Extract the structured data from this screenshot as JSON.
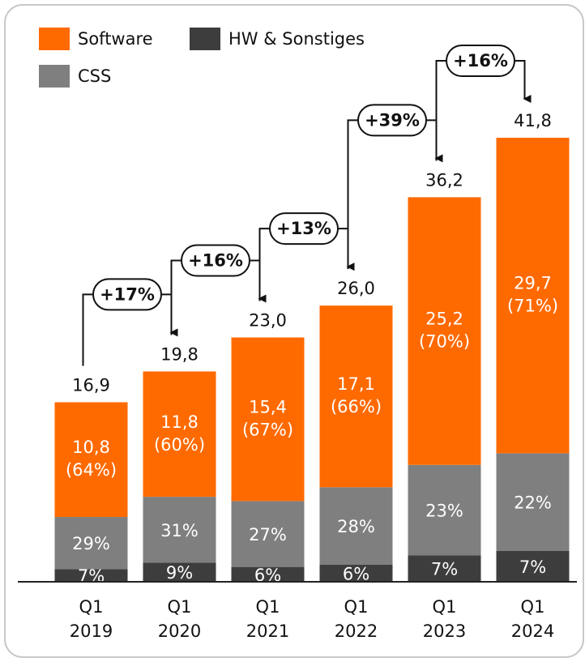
{
  "chart_data": {
    "type": "stacked_bar",
    "categories": [
      [
        "Q1",
        "2019"
      ],
      [
        "Q1",
        "2020"
      ],
      [
        "Q1",
        "2021"
      ],
      [
        "Q1",
        "2022"
      ],
      [
        "Q1",
        "2023"
      ],
      [
        "Q1",
        "2024"
      ]
    ],
    "series": [
      {
        "name": "HW & Sonstiges",
        "color": "#3d3d3d",
        "values": [
          1.2,
          1.8,
          1.4,
          1.6,
          2.5,
          2.9
        ],
        "shares": [
          7,
          9,
          6,
          6,
          7,
          7
        ],
        "share_labels": [
          "7%",
          "9%",
          "6%",
          "6%",
          "7%",
          "7%"
        ]
      },
      {
        "name": "CSS",
        "color": "#7f7f7f",
        "values": [
          4.9,
          6.2,
          6.2,
          7.3,
          8.5,
          9.2
        ],
        "shares": [
          29,
          31,
          27,
          28,
          23,
          22
        ],
        "share_labels": [
          "29%",
          "31%",
          "27%",
          "28%",
          "23%",
          "22%"
        ]
      },
      {
        "name": "Software",
        "color": "#ff6a00",
        "values": [
          10.8,
          11.8,
          15.4,
          17.1,
          25.2,
          29.7
        ],
        "value_labels": [
          "10,8",
          "11,8",
          "15,4",
          "17,1",
          "25,2",
          "29,7"
        ],
        "shares": [
          64,
          60,
          67,
          66,
          70,
          71
        ],
        "share_labels": [
          "(64%)",
          "(60%)",
          "(67%)",
          "(66%)",
          "(70%)",
          "(71%)"
        ]
      }
    ],
    "totals": [
      16.9,
      19.8,
      23.0,
      26.0,
      36.2,
      41.8
    ],
    "total_labels": [
      "16,9",
      "19,8",
      "23,0",
      "26,0",
      "36,2",
      "41,8"
    ],
    "growth": [
      {
        "value": 17,
        "label": "+17%"
      },
      {
        "value": 16,
        "label": "+16%"
      },
      {
        "value": 13,
        "label": "+13%"
      },
      {
        "value": 39,
        "label": "+39%"
      },
      {
        "value": 16,
        "label": "+16%"
      }
    ],
    "ylim": [
      0,
      41.8
    ]
  }
}
